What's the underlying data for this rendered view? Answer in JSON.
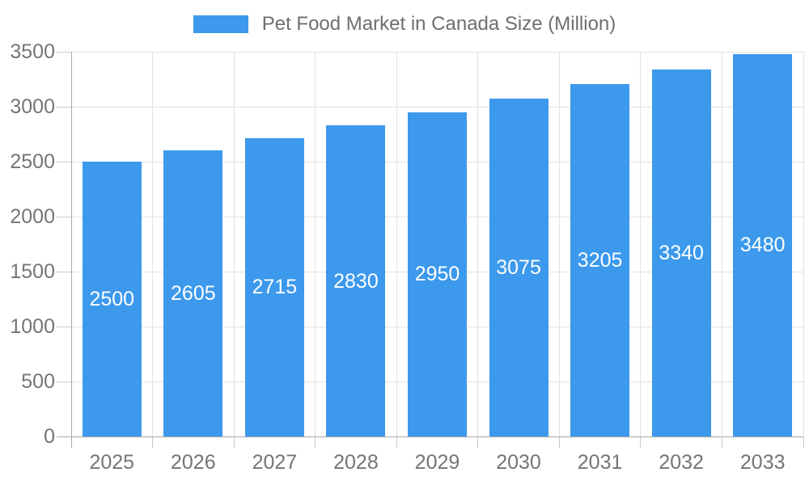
{
  "chart_data": {
    "type": "bar",
    "title": "Pet Food Market in Canada Size (Million)",
    "categories": [
      "2025",
      "2026",
      "2027",
      "2028",
      "2029",
      "2030",
      "2031",
      "2032",
      "2033"
    ],
    "values": [
      2500,
      2605,
      2715,
      2830,
      2950,
      3075,
      3205,
      3340,
      3480
    ],
    "value_labels": [
      "2500",
      "2605",
      "2715",
      "2830",
      "2950",
      "3075",
      "3205",
      "3340",
      "3480"
    ],
    "xlabel": "",
    "ylabel": "",
    "ylim": [
      0,
      3500
    ],
    "yticks": [
      0,
      500,
      1000,
      1500,
      2000,
      2500,
      3000,
      3500
    ],
    "ytick_labels": [
      "0",
      "500",
      "1000",
      "1500",
      "2000",
      "2500",
      "3000",
      "3500"
    ],
    "grid": true,
    "legend_position": "top",
    "legend_entries": [
      "Pet Food Market in Canada Size (Million)"
    ],
    "colors": {
      "bar": "#3C99EC",
      "value_label_text": "#FFFFFF",
      "axis_label_text": "#757575",
      "legend_text": "#6E6E6E",
      "gridline": "#E1E1E1",
      "tick": "#C9C9C9",
      "axis_line": "#A9A9A9",
      "background": "#FFFFFF"
    }
  }
}
